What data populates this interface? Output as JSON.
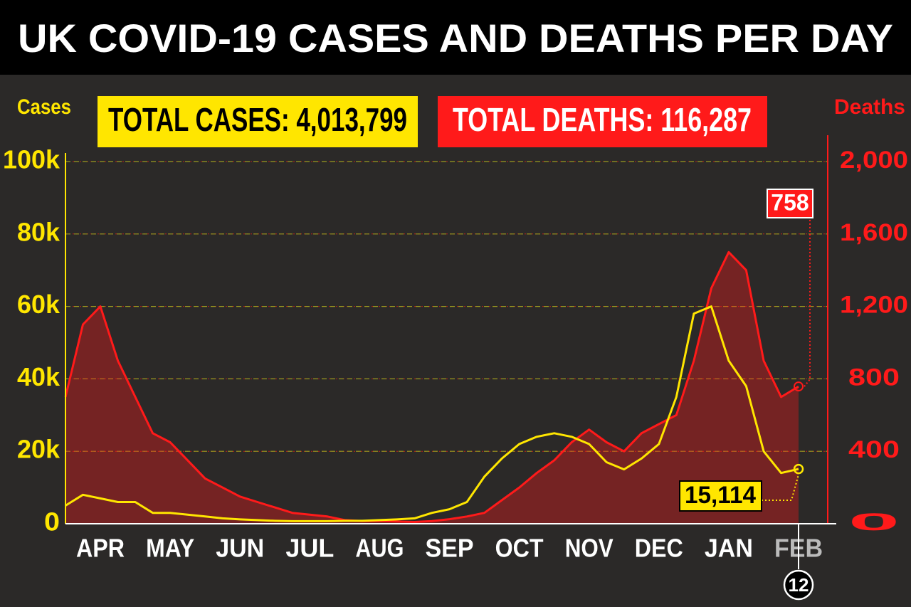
{
  "chart_data": {
    "type": "line",
    "title": "UK COVID-19 CASES AND DEATHS PER DAY",
    "total_cases_label": "TOTAL CASES: 4,013,799",
    "total_deaths_label": "TOTAL DEATHS: 116,287",
    "ylabel": "Cases",
    "y2label": "Deaths",
    "date_marker": "12",
    "categories": [
      null,
      null,
      "APR",
      null,
      null,
      null,
      "MAY",
      null,
      null,
      null,
      "JUN",
      null,
      null,
      null,
      "JUL",
      null,
      null,
      null,
      "AUG",
      null,
      null,
      null,
      "SEP",
      null,
      null,
      null,
      "OCT",
      null,
      null,
      null,
      "NOV",
      null,
      null,
      null,
      "DEC",
      null,
      null,
      null,
      "JAN",
      null,
      null,
      null,
      "FEB"
    ],
    "series": [
      {
        "name": "Cases",
        "color": "#ffe600",
        "values": [
          5000,
          8000,
          7000,
          6000,
          6000,
          3000,
          3000,
          2500,
          2000,
          1500,
          1200,
          1000,
          800,
          700,
          700,
          700,
          800,
          800,
          1000,
          1200,
          1500,
          3000,
          4000,
          6000,
          13000,
          18000,
          22000,
          24000,
          25000,
          24000,
          22000,
          17000,
          15000,
          18000,
          22000,
          35000,
          58000,
          60000,
          45000,
          38000,
          20000,
          14000,
          15114
        ],
        "value_labels": [
          null,
          null,
          null,
          null,
          null,
          null,
          null,
          null,
          null,
          null,
          null,
          null,
          null,
          null,
          null,
          null,
          null,
          null,
          null,
          null,
          null,
          null,
          null,
          null,
          null,
          null,
          null,
          null,
          null,
          null,
          null,
          null,
          null,
          null,
          null,
          null,
          null,
          null,
          null,
          null,
          null,
          null,
          "15,114"
        ]
      },
      {
        "name": "Deaths",
        "color": "#ff1a1a",
        "axis": "y2",
        "values": [
          700,
          1100,
          1200,
          900,
          700,
          500,
          450,
          350,
          250,
          200,
          150,
          120,
          90,
          60,
          50,
          40,
          20,
          15,
          15,
          12,
          10,
          15,
          25,
          40,
          60,
          130,
          200,
          280,
          350,
          450,
          520,
          450,
          400,
          500,
          550,
          600,
          900,
          1300,
          1500,
          1400,
          900,
          700,
          758
        ],
        "value_labels": [
          null,
          null,
          null,
          null,
          null,
          null,
          null,
          null,
          null,
          null,
          null,
          null,
          null,
          null,
          null,
          null,
          null,
          null,
          null,
          null,
          null,
          null,
          null,
          null,
          null,
          null,
          null,
          null,
          null,
          null,
          null,
          null,
          null,
          null,
          null,
          null,
          null,
          null,
          null,
          null,
          null,
          null,
          "758"
        ]
      }
    ],
    "ylim": [
      0,
      100000
    ],
    "yticks": [
      0,
      {
        "value": 20000,
        "label": "20k"
      },
      {
        "value": 40000,
        "label": "40k"
      },
      {
        "value": 60000,
        "label": "60k"
      },
      {
        "value": 80000,
        "label": "80k"
      },
      {
        "value": 100000,
        "label": "100k"
      }
    ],
    "y2lim": [
      0,
      2000
    ],
    "y2ticks": [
      0,
      400,
      800,
      {
        "value": 1200,
        "label": "1,200"
      },
      {
        "value": 1600,
        "label": "1,600"
      },
      {
        "value": 2000,
        "label": "2,000"
      }
    ],
    "grid": true
  }
}
